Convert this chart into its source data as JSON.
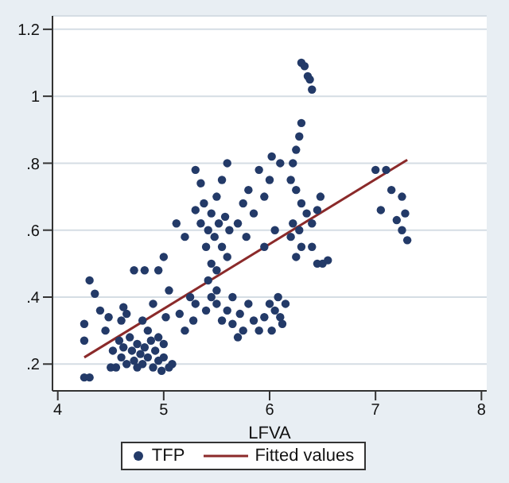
{
  "chart_data": {
    "type": "scatter",
    "xlabel": "LFVA",
    "xlim": [
      3.95,
      8.05
    ],
    "ylim": [
      0.12,
      1.24
    ],
    "xticks": [
      4,
      5,
      6,
      7,
      8
    ],
    "yticks": [
      {
        "value": 0.2,
        "label": ".2"
      },
      {
        "value": 0.4,
        "label": ".4"
      },
      {
        "value": 0.6,
        "label": ".6"
      },
      {
        "value": 0.8,
        "label": ".8"
      },
      {
        "value": 1,
        "label": "1"
      },
      {
        "value": 1.2,
        "label": "1.2"
      }
    ],
    "grid": "y",
    "legend": "bottom",
    "series": [
      {
        "name": "TFP",
        "marker": "circle",
        "color": "#233a68",
        "x": [
          4.25,
          4.3,
          4.5,
          4.55,
          4.6,
          4.62,
          4.65,
          4.7,
          4.72,
          4.75,
          4.78,
          4.8,
          4.82,
          4.85,
          4.88,
          4.9,
          4.92,
          4.95,
          4.98,
          5.0,
          5.05,
          5.08,
          4.68,
          4.58,
          4.52,
          4.85,
          4.95,
          5.0,
          4.75,
          4.25,
          4.3,
          4.35,
          4.4,
          4.25,
          4.45,
          4.48,
          4.6,
          4.62,
          4.65,
          4.72,
          4.82,
          4.95,
          5.0,
          5.05,
          4.9,
          5.02,
          4.8,
          5.15,
          5.2,
          5.25,
          5.3,
          5.28,
          5.12,
          5.2,
          5.3,
          5.35,
          5.3,
          5.35,
          5.4,
          5.42,
          5.45,
          5.45,
          5.48,
          5.5,
          5.5,
          5.52,
          5.55,
          5.55,
          5.58,
          5.6,
          5.6,
          5.62,
          5.42,
          5.38,
          5.5,
          5.4,
          5.45,
          5.5,
          5.55,
          5.6,
          5.65,
          5.7,
          5.72,
          5.75,
          5.8,
          5.85,
          5.65,
          5.7,
          5.75,
          5.8,
          5.85,
          5.9,
          5.95,
          6.0,
          6.02,
          6.05,
          5.78,
          5.95,
          6.1,
          5.9,
          5.95,
          6.0,
          6.02,
          6.05,
          6.08,
          6.1,
          6.12,
          6.15,
          6.3,
          6.33,
          6.36,
          6.38,
          6.4,
          6.3,
          6.28,
          6.25,
          6.22,
          6.2,
          6.25,
          6.3,
          6.22,
          6.28,
          6.35,
          6.4,
          6.45,
          6.48,
          6.3,
          6.25,
          6.2,
          6.45,
          6.5,
          6.55,
          6.4,
          7.0,
          7.1,
          7.05,
          7.15,
          7.25,
          7.28,
          7.25,
          7.3,
          7.2
        ],
        "values": [
          0.16,
          0.16,
          0.19,
          0.19,
          0.22,
          0.25,
          0.2,
          0.24,
          0.21,
          0.26,
          0.23,
          0.2,
          0.25,
          0.22,
          0.27,
          0.19,
          0.24,
          0.21,
          0.18,
          0.22,
          0.19,
          0.2,
          0.28,
          0.27,
          0.24,
          0.3,
          0.28,
          0.26,
          0.19,
          0.27,
          0.45,
          0.41,
          0.36,
          0.32,
          0.3,
          0.34,
          0.33,
          0.37,
          0.35,
          0.48,
          0.48,
          0.48,
          0.52,
          0.42,
          0.38,
          0.34,
          0.33,
          0.35,
          0.3,
          0.4,
          0.38,
          0.33,
          0.62,
          0.58,
          0.78,
          0.74,
          0.66,
          0.62,
          0.55,
          0.6,
          0.5,
          0.65,
          0.58,
          0.7,
          0.48,
          0.62,
          0.55,
          0.75,
          0.64,
          0.52,
          0.8,
          0.6,
          0.45,
          0.68,
          0.42,
          0.36,
          0.4,
          0.38,
          0.33,
          0.36,
          0.32,
          0.28,
          0.35,
          0.3,
          0.38,
          0.33,
          0.4,
          0.62,
          0.68,
          0.72,
          0.65,
          0.78,
          0.7,
          0.75,
          0.82,
          0.6,
          0.58,
          0.55,
          0.8,
          0.3,
          0.34,
          0.38,
          0.3,
          0.36,
          0.4,
          0.34,
          0.32,
          0.38,
          1.1,
          1.09,
          1.06,
          1.05,
          1.02,
          0.92,
          0.88,
          0.84,
          0.8,
          0.75,
          0.72,
          0.68,
          0.62,
          0.6,
          0.65,
          0.62,
          0.66,
          0.7,
          0.55,
          0.52,
          0.58,
          0.5,
          0.5,
          0.51,
          0.55,
          0.78,
          0.78,
          0.66,
          0.72,
          0.7,
          0.65,
          0.6,
          0.57,
          0.63
        ]
      },
      {
        "name": "Fitted values",
        "type": "line",
        "marker": "none",
        "color": "#8b2a2a",
        "x": [
          4.25,
          7.3
        ],
        "values": [
          0.22,
          0.81
        ]
      }
    ]
  }
}
